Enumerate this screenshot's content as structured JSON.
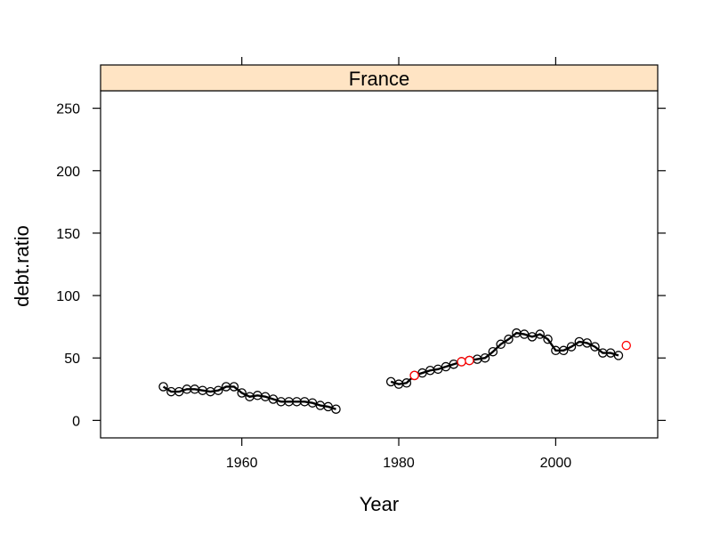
{
  "chart_data": {
    "type": "line",
    "panel_title": "France",
    "xlabel": "Year",
    "ylabel": "debt.ratio",
    "xlim": [
      1942,
      2013
    ],
    "ylim": [
      -14,
      264
    ],
    "xticks": [
      1960,
      1980,
      2000
    ],
    "yticks": [
      0,
      50,
      100,
      150,
      200,
      250
    ],
    "x_tick_labels": [
      "1960",
      "1980",
      "2000"
    ],
    "y_tick_labels": [
      "0",
      "50",
      "100",
      "150",
      "200",
      "250"
    ],
    "grid": false,
    "legend": "none",
    "colors": {
      "strip_background": "#ffe4c4",
      "main_series": "#000000",
      "highlight_points": "#ff0000"
    },
    "series": [
      {
        "segments": [
          [
            [
              1950,
              27
            ],
            [
              1951,
              23
            ],
            [
              1952,
              23
            ],
            [
              1953,
              25
            ],
            [
              1954,
              25
            ],
            [
              1955,
              24
            ],
            [
              1956,
              23
            ],
            [
              1957,
              24
            ],
            [
              1958,
              27
            ],
            [
              1959,
              27
            ],
            [
              1960,
              22
            ],
            [
              1961,
              19
            ],
            [
              1962,
              20
            ],
            [
              1963,
              19
            ],
            [
              1964,
              17
            ],
            [
              1965,
              15
            ],
            [
              1966,
              15
            ],
            [
              1967,
              15
            ],
            [
              1968,
              15
            ],
            [
              1969,
              14
            ],
            [
              1970,
              12
            ],
            [
              1971,
              11
            ],
            [
              1972,
              9
            ]
          ],
          [
            [
              1979,
              31
            ],
            [
              1980,
              29
            ],
            [
              1981,
              30
            ],
            [
              1982,
              36
            ],
            [
              1983,
              38
            ],
            [
              1984,
              40
            ],
            [
              1985,
              41
            ],
            [
              1986,
              43
            ],
            [
              1987,
              45
            ],
            [
              1988,
              47
            ],
            [
              1989,
              48
            ],
            [
              1990,
              49
            ],
            [
              1991,
              50
            ],
            [
              1992,
              55
            ],
            [
              1993,
              61
            ],
            [
              1994,
              65
            ],
            [
              1995,
              70
            ],
            [
              1996,
              69
            ],
            [
              1997,
              67
            ],
            [
              1998,
              69
            ],
            [
              1999,
              65
            ],
            [
              2000,
              56
            ],
            [
              2001,
              56
            ],
            [
              2002,
              59
            ],
            [
              2003,
              63
            ],
            [
              2004,
              62
            ],
            [
              2005,
              59
            ],
            [
              2006,
              54
            ],
            [
              2007,
              54
            ],
            [
              2008,
              52
            ]
          ]
        ]
      }
    ],
    "highlighted_points": [
      [
        1982,
        36
      ],
      [
        1988,
        47
      ],
      [
        1989,
        48
      ],
      [
        2009,
        60
      ]
    ]
  }
}
